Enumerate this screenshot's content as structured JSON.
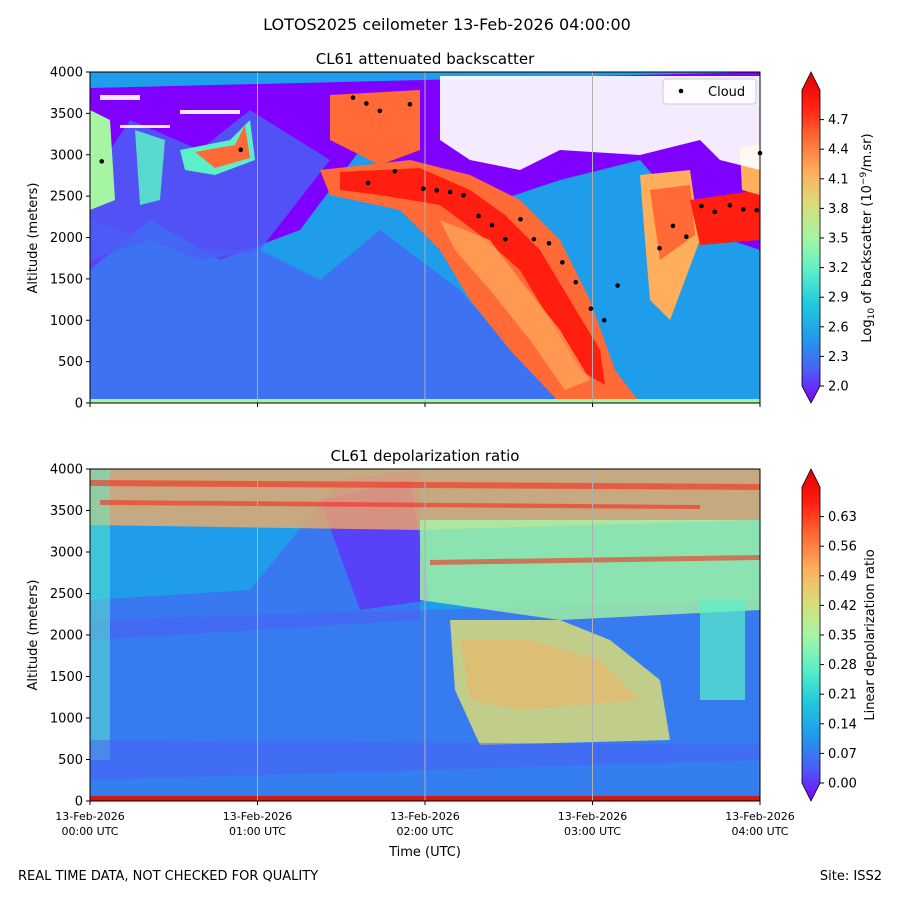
{
  "figure": {
    "suptitle": "LOTOS2025 ceilometer 13-Feb-2026 04:00:00",
    "footer_left": "REAL TIME DATA, NOT CHECKED FOR QUALITY",
    "footer_right": "Site: ISS2"
  },
  "colors": {
    "rainbow": [
      "#8000ff",
      "#4a5ff5",
      "#1f9dea",
      "#22c9dc",
      "#5bf0c8",
      "#a6f5a3",
      "#d9dc79",
      "#ffae5c",
      "#ff6a36",
      "#ff1e10",
      "#e00000"
    ],
    "cloud_marker": "#000000",
    "grid": "#b0b0b0",
    "ground_bar": "#d01c10"
  },
  "chart_data": [
    {
      "type": "heatmap",
      "title": "CL61 attenuated backscatter",
      "ylabel": "Altitude (meters)",
      "xlabel": "",
      "ylim": [
        0,
        4000
      ],
      "xlim_hours": [
        0,
        4
      ],
      "y_ticks": [
        "0",
        "500",
        "1000",
        "1500",
        "2000",
        "2500",
        "3000",
        "3500",
        "4000"
      ],
      "x_ticks": [],
      "grid": true,
      "colorbar": {
        "label_prefix": "Log",
        "label_sub": "10",
        "label_mid": " of backscatter (10",
        "label_sup": "−9",
        "label_suffix": "/m.sr)",
        "min": 2.0,
        "max": 5.0,
        "ticks": [
          "2.0",
          "2.3",
          "2.6",
          "2.9",
          "3.2",
          "3.5",
          "3.8",
          "4.1",
          "4.4",
          "4.7"
        ],
        "extend": "both"
      },
      "legend": {
        "entries": [
          "Cloud"
        ],
        "placement": "upper-right"
      },
      "cloud_points": [
        {
          "t": 0.07,
          "alt": 2920
        },
        {
          "t": 0.9,
          "alt": 3060
        },
        {
          "t": 1.57,
          "alt": 3690
        },
        {
          "t": 1.65,
          "alt": 3620
        },
        {
          "t": 1.66,
          "alt": 2660
        },
        {
          "t": 1.73,
          "alt": 3530
        },
        {
          "t": 1.82,
          "alt": 2800
        },
        {
          "t": 1.91,
          "alt": 3610
        },
        {
          "t": 1.99,
          "alt": 2590
        },
        {
          "t": 2.07,
          "alt": 2570
        },
        {
          "t": 2.15,
          "alt": 2550
        },
        {
          "t": 2.23,
          "alt": 2510
        },
        {
          "t": 2.32,
          "alt": 2260
        },
        {
          "t": 2.4,
          "alt": 2150
        },
        {
          "t": 2.48,
          "alt": 1980
        },
        {
          "t": 2.57,
          "alt": 2220
        },
        {
          "t": 2.65,
          "alt": 1980
        },
        {
          "t": 2.74,
          "alt": 1930
        },
        {
          "t": 2.82,
          "alt": 1700
        },
        {
          "t": 2.9,
          "alt": 1460
        },
        {
          "t": 2.99,
          "alt": 1140
        },
        {
          "t": 3.07,
          "alt": 1000
        },
        {
          "t": 3.15,
          "alt": 1420
        },
        {
          "t": 3.4,
          "alt": 1870
        },
        {
          "t": 3.48,
          "alt": 2140
        },
        {
          "t": 3.56,
          "alt": 2010
        },
        {
          "t": 3.65,
          "alt": 2380
        },
        {
          "t": 3.73,
          "alt": 2310
        },
        {
          "t": 3.82,
          "alt": 2390
        },
        {
          "t": 3.9,
          "alt": 2340
        },
        {
          "t": 3.98,
          "alt": 2330
        },
        {
          "t": 4.0,
          "alt": 3020
        }
      ]
    },
    {
      "type": "heatmap",
      "title": "CL61 depolarization ratio",
      "ylabel": "Altitude (meters)",
      "xlabel": "Time (UTC)",
      "ylim": [
        0,
        4000
      ],
      "xlim_hours": [
        0,
        4
      ],
      "y_ticks": [
        "0",
        "500",
        "1000",
        "1500",
        "2000",
        "2500",
        "3000",
        "3500",
        "4000"
      ],
      "x_ticks": [
        {
          "date": "13-Feb-2026",
          "time": "00:00 UTC"
        },
        {
          "date": "13-Feb-2026",
          "time": "01:00 UTC"
        },
        {
          "date": "13-Feb-2026",
          "time": "02:00 UTC"
        },
        {
          "date": "13-Feb-2026",
          "time": "03:00 UTC"
        },
        {
          "date": "13-Feb-2026",
          "time": "04:00 UTC"
        }
      ],
      "grid": true,
      "colorbar": {
        "label": "Linear depolarization ratio",
        "min": 0.0,
        "max": 0.7,
        "ticks": [
          "0.00",
          "0.07",
          "0.14",
          "0.21",
          "0.28",
          "0.35",
          "0.42",
          "0.49",
          "0.56",
          "0.63"
        ],
        "extend": "both"
      }
    }
  ]
}
